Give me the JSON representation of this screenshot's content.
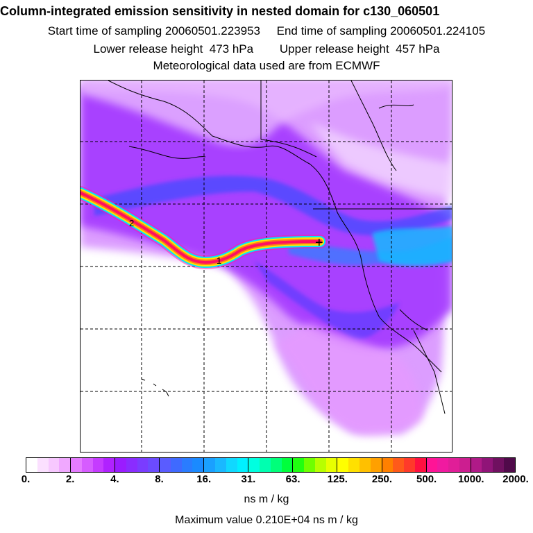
{
  "header": {
    "title": "Column-integrated emission sensitivity in nested domain for c130_060501",
    "sampling": "Start time of sampling 20060501.223953     End time of sampling 20060501.224105",
    "release": "Lower release height  473 hPa        Upper release height  457 hPa",
    "met": "Meteorological data used are from ECMWF"
  },
  "map": {
    "track_labels": [
      "2",
      "1"
    ],
    "release_marker": "+"
  },
  "legend": {
    "ticks": [
      "0.",
      "2.",
      "4.",
      "8.",
      "16.",
      "31.",
      "63.",
      "125.",
      "250.",
      "500.",
      "1000.",
      "2000."
    ],
    "units": "ns m / kg",
    "max_value": "Maximum value  0.210E+04 ns m / kg",
    "colors": [
      "#ffffff",
      "#fbe0ff",
      "#f7c8ff",
      "#f0a8ff",
      "#e57cff",
      "#d65cff",
      "#c53bff",
      "#b022ff",
      "#9a1cff",
      "#8a2cff",
      "#7a3cff",
      "#6b4bff",
      "#5a5cff",
      "#3f6aff",
      "#2a7cff",
      "#1a8aff",
      "#1aa0ff",
      "#1ab8ff",
      "#10d8ff",
      "#00f0ff",
      "#00ffe0",
      "#00ffb0",
      "#00ff7a",
      "#00ff3c",
      "#20ff10",
      "#70ff00",
      "#b8ff00",
      "#e8ff00",
      "#ffff00",
      "#ffe000",
      "#ffc000",
      "#ffa000",
      "#ff8000",
      "#ff5a1a",
      "#ff3a2a",
      "#ff1040",
      "#ff1496",
      "#f01aa0",
      "#e01e98",
      "#cc1e90",
      "#b01a88",
      "#901478",
      "#701060",
      "#500a4a"
    ]
  }
}
